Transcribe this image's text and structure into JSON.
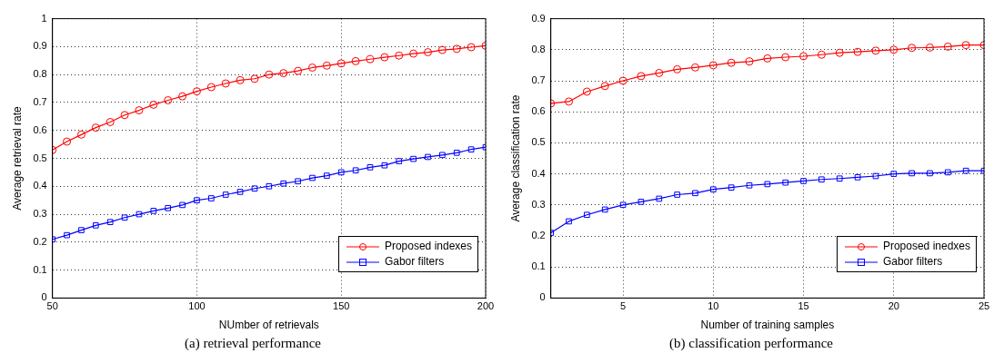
{
  "chart_data": [
    {
      "type": "line",
      "xlabel": "NUmber of retrievals",
      "ylabel": "Average retrieval rate",
      "annotations": [
        "(a) retrieval performance"
      ],
      "x": [
        50,
        55,
        60,
        65,
        70,
        75,
        80,
        85,
        90,
        95,
        100,
        105,
        110,
        115,
        120,
        125,
        130,
        135,
        140,
        145,
        150,
        155,
        160,
        165,
        170,
        175,
        180,
        185,
        190,
        195,
        200
      ],
      "xlim": [
        50,
        200
      ],
      "xticks": [
        50,
        100,
        150,
        200
      ],
      "ylim": [
        0,
        1
      ],
      "yticks": [
        0,
        0.1,
        0.2,
        0.3,
        0.4,
        0.5,
        0.6,
        0.7,
        0.8,
        0.9,
        1
      ],
      "grid": true,
      "legend": "bottom right",
      "line_style": "solid",
      "series": [
        {
          "name": "Proposed indexes",
          "color": "#ff0000",
          "marker": "circle",
          "values": [
            0.53,
            0.56,
            0.585,
            0.61,
            0.63,
            0.655,
            0.672,
            0.692,
            0.708,
            0.722,
            0.74,
            0.755,
            0.768,
            0.78,
            0.785,
            0.8,
            0.805,
            0.813,
            0.825,
            0.832,
            0.84,
            0.848,
            0.855,
            0.862,
            0.868,
            0.875,
            0.88,
            0.888,
            0.892,
            0.898,
            0.903
          ]
        },
        {
          "name": "Gabor filters",
          "color": "#0000ff",
          "marker": "square",
          "values": [
            0.21,
            0.225,
            0.243,
            0.26,
            0.272,
            0.288,
            0.3,
            0.312,
            0.322,
            0.333,
            0.35,
            0.357,
            0.37,
            0.38,
            0.392,
            0.4,
            0.41,
            0.418,
            0.43,
            0.438,
            0.45,
            0.457,
            0.468,
            0.475,
            0.49,
            0.498,
            0.505,
            0.512,
            0.52,
            0.532,
            0.54
          ]
        }
      ]
    },
    {
      "type": "line",
      "xlabel": "Number of training samples",
      "ylabel": "Average classification rate",
      "annotations": [
        "(b) classification performance"
      ],
      "x": [
        1,
        2,
        3,
        4,
        5,
        6,
        7,
        8,
        9,
        10,
        11,
        12,
        13,
        14,
        15,
        16,
        17,
        18,
        19,
        20,
        21,
        22,
        23,
        24,
        25
      ],
      "xlim": [
        1,
        25
      ],
      "xticks": [
        5,
        10,
        15,
        20,
        25
      ],
      "ylim": [
        0,
        0.9
      ],
      "yticks": [
        0,
        0.1,
        0.2,
        0.3,
        0.4,
        0.5,
        0.6,
        0.7,
        0.8,
        0.9
      ],
      "grid": true,
      "legend": "bottom right",
      "line_style": "solid",
      "series": [
        {
          "name": "Proposed inedxes",
          "color": "#ff0000",
          "marker": "circle",
          "values": [
            0.627,
            0.633,
            0.665,
            0.683,
            0.7,
            0.715,
            0.725,
            0.737,
            0.743,
            0.75,
            0.758,
            0.762,
            0.772,
            0.776,
            0.779,
            0.784,
            0.79,
            0.793,
            0.797,
            0.8,
            0.806,
            0.807,
            0.81,
            0.815,
            0.815
          ]
        },
        {
          "name": "Gabor filters",
          "color": "#0000ff",
          "marker": "square",
          "values": [
            0.21,
            0.247,
            0.268,
            0.285,
            0.3,
            0.31,
            0.32,
            0.333,
            0.338,
            0.35,
            0.356,
            0.363,
            0.367,
            0.372,
            0.377,
            0.382,
            0.385,
            0.389,
            0.393,
            0.4,
            0.402,
            0.402,
            0.405,
            0.41,
            0.41
          ]
        }
      ]
    }
  ]
}
